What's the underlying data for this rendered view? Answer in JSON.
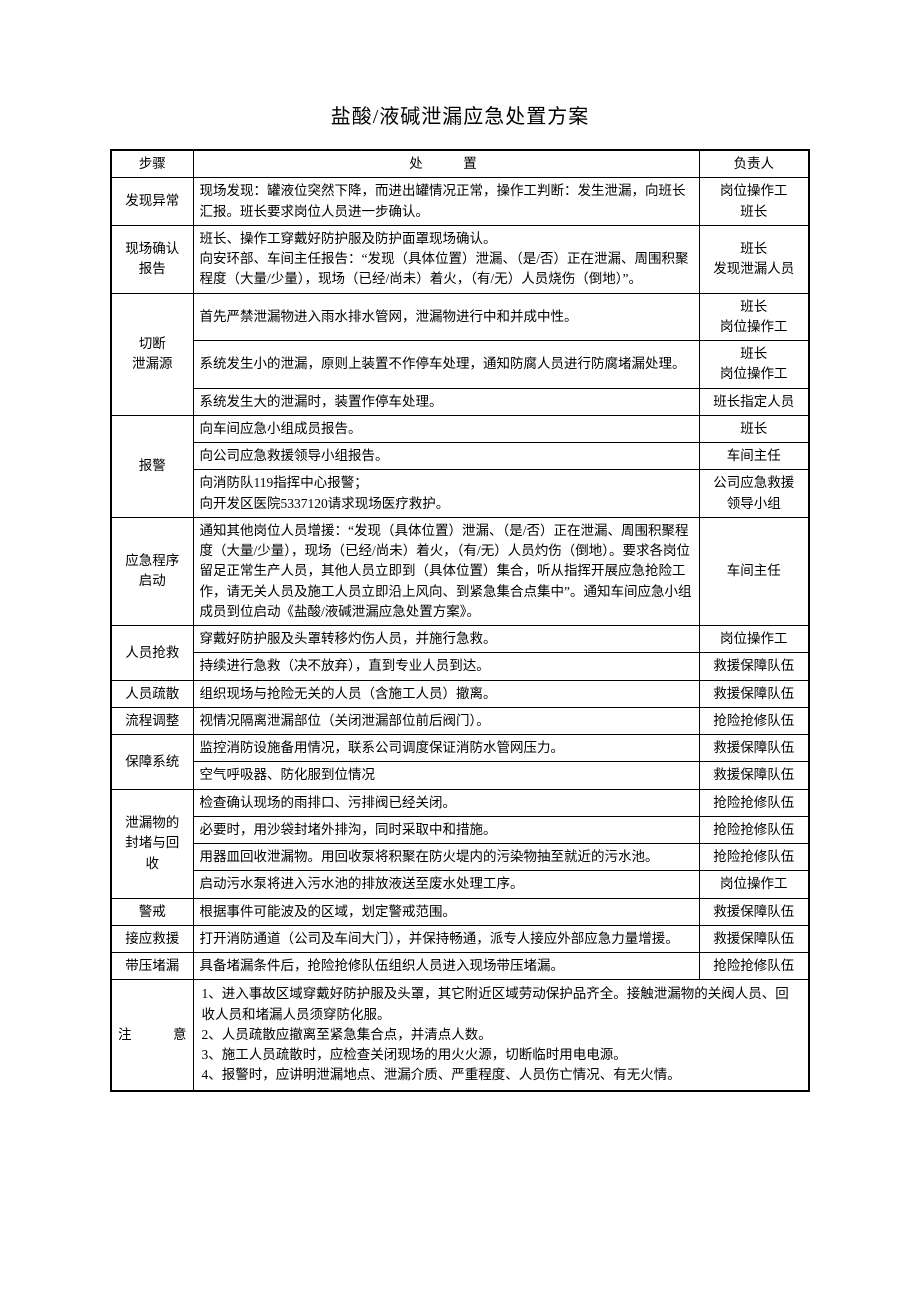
{
  "document": {
    "title": "盐酸/液碱泄漏应急处置方案",
    "headers": {
      "step": "步骤",
      "action": "处置",
      "owner": "负责人"
    },
    "rows": [
      {
        "step": "发现异常",
        "action": "现场发现：罐液位突然下降，而进出罐情况正常，操作工判断：发生泄漏，向班长汇报。班长要求岗位人员进一步确认。",
        "owner": "岗位操作工\n班长"
      },
      {
        "step": "现场确认\n报告",
        "action": "班长、操作工穿戴好防护服及防护面罩现场确认。\n向安环部、车间主任报告：“发现（具体位置）泄漏、（是/否）正在泄漏、周围积聚程度（大量/少量），现场（已经/尚未）着火，（有/无）人员烧伤（倒地）”。",
        "owner": "班长\n发现泄漏人员"
      },
      {
        "step": "切断\n泄漏源",
        "actions": [
          {
            "text": "首先严禁泄漏物进入雨水排水管网，泄漏物进行中和并成中性。",
            "owner": "班长\n岗位操作工"
          },
          {
            "text": "系统发生小的泄漏，原则上装置不作停车处理，通知防腐人员进行防腐堵漏处理。",
            "owner": "班长\n岗位操作工"
          },
          {
            "text": "系统发生大的泄漏时，装置作停车处理。",
            "owner": "班长指定人员"
          }
        ]
      },
      {
        "step": "报警",
        "actions": [
          {
            "text": "向车间应急小组成员报告。",
            "owner": "班长"
          },
          {
            "text": "向公司应急救援领导小组报告。",
            "owner": "车间主任"
          },
          {
            "text": "向消防队119指挥中心报警；\n向开发区医院5337120请求现场医疗救护。",
            "owner": "公司应急救援\n领导小组"
          }
        ]
      },
      {
        "step": "应急程序\n启动",
        "action": "通知其他岗位人员增援：“发现（具体位置）泄漏、（是/否）正在泄漏、周围积聚程度（大量/少量），现场（已经/尚未）着火，（有/无）人员灼伤（倒地）。要求各岗位留足正常生产人员，其他人员立即到（具体位置）集合，听从指挥开展应急抢险工作，请无关人员及施工人员立即沿上风向、到紧急集合点集中”。通知车间应急小组成员到位启动《盐酸/液碱泄漏应急处置方案》。",
        "owner": "车间主任"
      },
      {
        "step": "人员抢救",
        "actions": [
          {
            "text": "穿戴好防护服及头罩转移灼伤人员，并施行急救。",
            "owner": "岗位操作工"
          },
          {
            "text": "持续进行急救（决不放弃），直到专业人员到达。",
            "owner": "救援保障队伍"
          }
        ]
      },
      {
        "step": "人员疏散",
        "action": "组织现场与抢险无关的人员（含施工人员）撤离。",
        "owner": "救援保障队伍"
      },
      {
        "step": "流程调整",
        "action": "视情况隔离泄漏部位（关闭泄漏部位前后阀门）。",
        "owner": "抢险抢修队伍"
      },
      {
        "step": "保障系统",
        "actions": [
          {
            "text": "监控消防设施备用情况，联系公司调度保证消防水管网压力。",
            "owner": "救援保障队伍"
          },
          {
            "text": "空气呼吸器、防化服到位情况",
            "owner": "救援保障队伍"
          }
        ]
      },
      {
        "step": "泄漏物的\n封堵与回\n收",
        "actions": [
          {
            "text": "检查确认现场的雨排口、污排阀已经关闭。",
            "owner": "抢险抢修队伍"
          },
          {
            "text": "必要时，用沙袋封堵外排沟，同时采取中和措施。",
            "owner": "抢险抢修队伍"
          },
          {
            "text": "用器皿回收泄漏物。用回收泵将积聚在防火堤内的污染物抽至就近的污水池。",
            "owner": "抢险抢修队伍"
          },
          {
            "text": "启动污水泵将进入污水池的排放液送至废水处理工序。",
            "owner": "岗位操作工"
          }
        ]
      },
      {
        "step": "警戒",
        "action": "根据事件可能波及的区域，划定警戒范围。",
        "owner": "救援保障队伍"
      },
      {
        "step": "接应救援",
        "action": "打开消防通道（公司及车间大门），并保持畅通，派专人接应外部应急力量增援。",
        "owner": "救援保障队伍"
      },
      {
        "step": "带压堵漏",
        "action": "具备堵漏条件后，抢险抢修队伍组织人员进入现场带压堵漏。",
        "owner": "抢险抢修队伍"
      }
    ],
    "notes": {
      "label": "注　　意",
      "content": "1、进入事故区域穿戴好防护服及头罩，其它附近区域劳动保护品齐全。接触泄漏物的关阀人员、回收人员和堵漏人员须穿防化服。\n2、人员疏散应撤离至紧急集合点，并清点人数。\n3、施工人员疏散时，应检查关闭现场的用火火源，切断临时用电电源。\n4、报警时，应讲明泄漏地点、泄漏介质、严重程度、人员伤亡情况、有无火情。"
    }
  },
  "styling": {
    "background_color": "#ffffff",
    "text_color": "#000000",
    "border_color": "#000000",
    "title_fontsize": 20,
    "body_fontsize": 13.5,
    "font_family": "SimSun",
    "col_widths": {
      "step": 82,
      "owner": 110
    },
    "line_height": 1.5
  }
}
